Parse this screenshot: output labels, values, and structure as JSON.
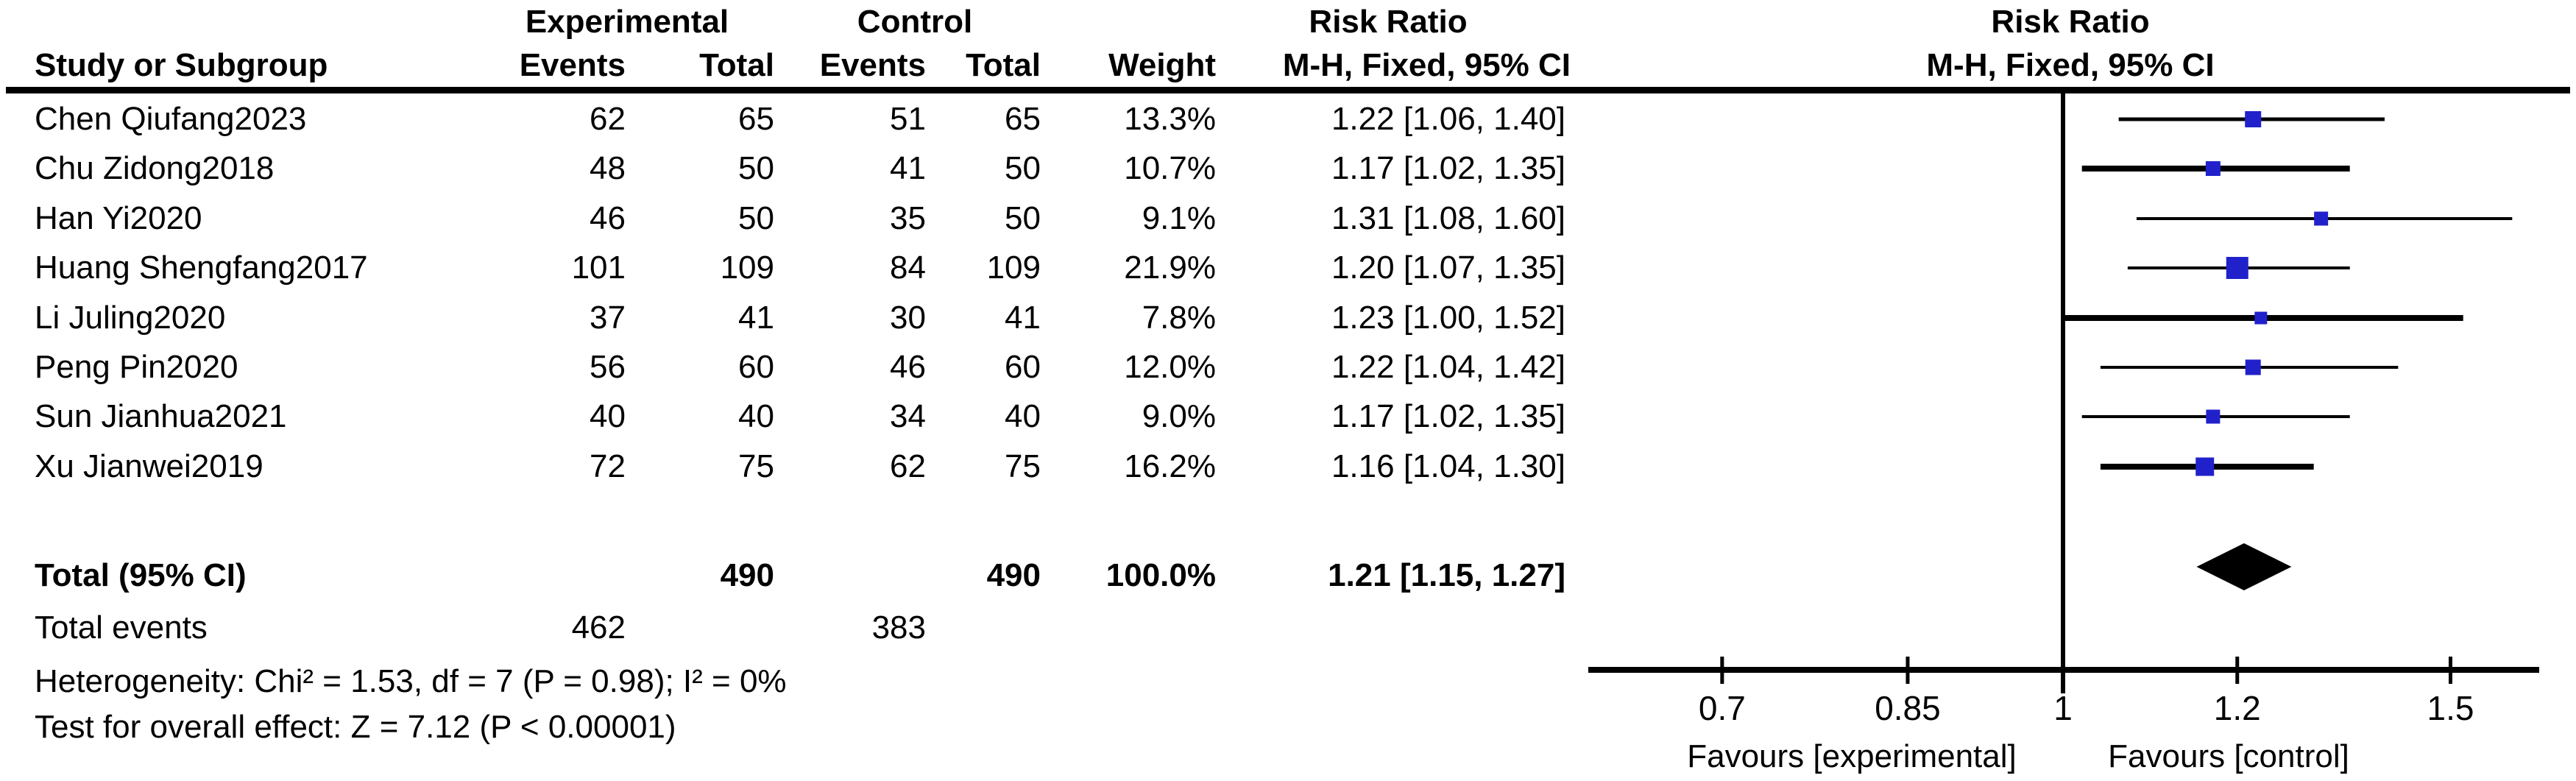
{
  "header": {
    "group_experimental": "Experimental",
    "group_control": "Control",
    "risk_ratio_left": "Risk Ratio",
    "risk_ratio_right": "Risk Ratio",
    "study_or_subgroup": "Study or Subgroup",
    "events": "Events",
    "total": "Total",
    "events2": "Events",
    "total2": "Total",
    "weight": "Weight",
    "mh_fixed_left": "M-H, Fixed, 95% CI",
    "mh_fixed_right": "M-H, Fixed, 95% CI"
  },
  "chart_data": {
    "type": "forest",
    "effect_measure": "Risk Ratio",
    "method": "M-H, Fixed, 95% CI",
    "x_scale": "log",
    "x_ticks": [
      "0.7",
      "0.85",
      "1",
      "1.2",
      "1.5"
    ],
    "favours_left": "Favours [experimental]",
    "favours_right": "Favours [control]",
    "studies": [
      {
        "name": "Chen Qiufang2023",
        "exp_events": "62",
        "exp_total": "65",
        "ctrl_events": "51",
        "ctrl_total": "65",
        "weight": "13.3%",
        "ci_label": "1.22 [1.06, 1.40]",
        "rr": 1.22,
        "ci_lo": 1.06,
        "ci_hi": 1.4
      },
      {
        "name": "Chu Zidong2018",
        "exp_events": "48",
        "exp_total": "50",
        "ctrl_events": "41",
        "ctrl_total": "50",
        "weight": "10.7%",
        "ci_label": "1.17 [1.02, 1.35]",
        "rr": 1.17,
        "ci_lo": 1.02,
        "ci_hi": 1.35
      },
      {
        "name": "Han Yi2020",
        "exp_events": "46",
        "exp_total": "50",
        "ctrl_events": "35",
        "ctrl_total": "50",
        "weight": "9.1%",
        "ci_label": "1.31 [1.08, 1.60]",
        "rr": 1.31,
        "ci_lo": 1.08,
        "ci_hi": 1.6
      },
      {
        "name": "Huang Shengfang2017",
        "exp_events": "101",
        "exp_total": "109",
        "ctrl_events": "84",
        "ctrl_total": "109",
        "weight": "21.9%",
        "ci_label": "1.20 [1.07, 1.35]",
        "rr": 1.2,
        "ci_lo": 1.07,
        "ci_hi": 1.35
      },
      {
        "name": "Li Juling2020",
        "exp_events": "37",
        "exp_total": "41",
        "ctrl_events": "30",
        "ctrl_total": "41",
        "weight": "7.8%",
        "ci_label": "1.23 [1.00, 1.52]",
        "rr": 1.23,
        "ci_lo": 1.0,
        "ci_hi": 1.52
      },
      {
        "name": "Peng Pin2020",
        "exp_events": "56",
        "exp_total": "60",
        "ctrl_events": "46",
        "ctrl_total": "60",
        "weight": "12.0%",
        "ci_label": "1.22 [1.04, 1.42]",
        "rr": 1.22,
        "ci_lo": 1.04,
        "ci_hi": 1.42
      },
      {
        "name": "Sun Jianhua2021",
        "exp_events": "40",
        "exp_total": "40",
        "ctrl_events": "34",
        "ctrl_total": "40",
        "weight": "9.0%",
        "ci_label": "1.17 [1.02, 1.35]",
        "rr": 1.17,
        "ci_lo": 1.02,
        "ci_hi": 1.35
      },
      {
        "name": "Xu Jianwei2019",
        "exp_events": "72",
        "exp_total": "75",
        "ctrl_events": "62",
        "ctrl_total": "75",
        "weight": "16.2%",
        "ci_label": "1.16 [1.04, 1.30]",
        "rr": 1.16,
        "ci_lo": 1.04,
        "ci_hi": 1.3
      }
    ],
    "total": {
      "label": "Total (95% CI)",
      "exp_total": "490",
      "ctrl_total": "490",
      "weight": "100.0%",
      "ci_label": "1.21 [1.15, 1.27]",
      "rr": 1.21,
      "ci_lo": 1.15,
      "ci_hi": 1.27
    },
    "total_events": {
      "label": "Total events",
      "exp": "462",
      "ctrl": "383"
    },
    "heterogeneity": "Heterogeneity: Chi² = 1.53, df = 7 (P = 0.98); I² = 0%",
    "overall_effect": "Test for overall effect: Z = 7.12 (P < 0.00001)",
    "marker_color": "#2121CC",
    "line_color": "#000000"
  }
}
